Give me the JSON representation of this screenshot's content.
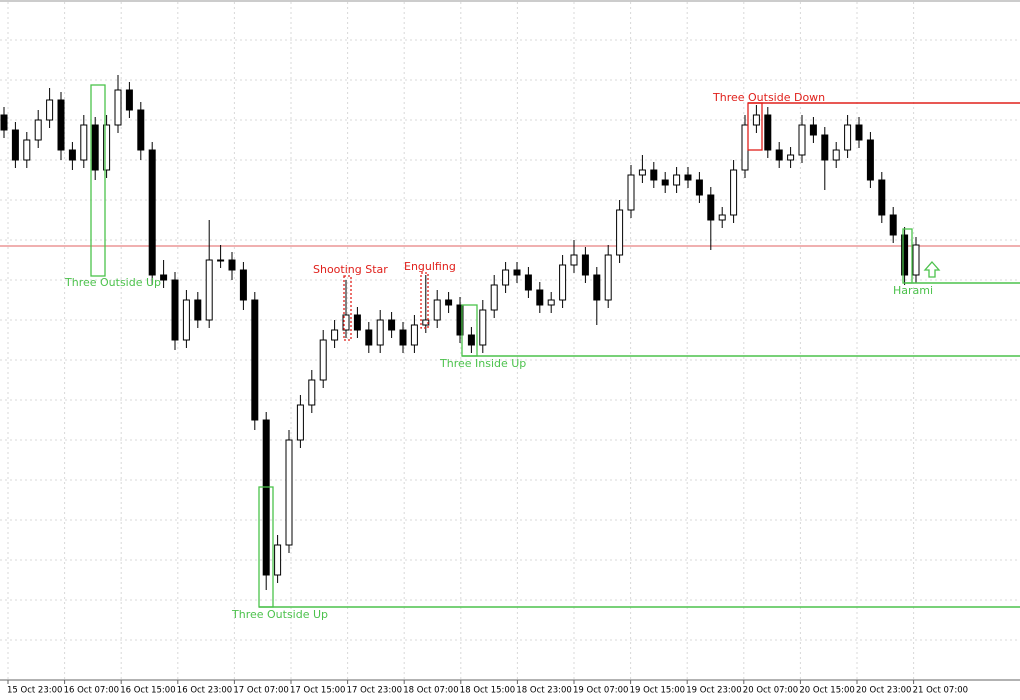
{
  "chart_data": {
    "type": "candlestick",
    "ylim": [
      20,
      700
    ],
    "time_labels": [
      "15 Oct 23:00",
      "16 Oct 07:00",
      "16 Oct 15:00",
      "16 Oct 23:00",
      "17 Oct 07:00",
      "17 Oct 15:00",
      "17 Oct 23:00",
      "18 Oct 07:00",
      "18 Oct 15:00",
      "18 Oct 23:00",
      "19 Oct 07:00",
      "19 Oct 15:00",
      "19 Oct 23:00",
      "20 Oct 07:00",
      "20 Oct 15:00",
      "20 Oct 23:00",
      "21 Oct 07:00"
    ],
    "candles": [
      [
        585,
        593,
        562,
        570
      ],
      [
        570,
        578,
        532,
        540
      ],
      [
        540,
        568,
        532,
        560
      ],
      [
        560,
        590,
        552,
        580
      ],
      [
        580,
        612,
        572,
        600
      ],
      [
        600,
        608,
        540,
        550
      ],
      [
        550,
        558,
        530,
        540
      ],
      [
        540,
        585,
        532,
        575
      ],
      [
        575,
        583,
        520,
        530
      ],
      [
        530,
        585,
        522,
        575
      ],
      [
        575,
        625,
        567,
        610
      ],
      [
        610,
        618,
        582,
        590
      ],
      [
        590,
        598,
        540,
        550
      ],
      [
        550,
        558,
        415,
        425
      ],
      [
        425,
        440,
        412,
        420
      ],
      [
        420,
        428,
        350,
        360
      ],
      [
        360,
        410,
        352,
        400
      ],
      [
        400,
        408,
        372,
        380
      ],
      [
        380,
        480,
        372,
        440
      ],
      [
        440,
        455,
        432,
        440
      ],
      [
        440,
        448,
        420,
        430
      ],
      [
        430,
        438,
        390,
        400
      ],
      [
        400,
        408,
        270,
        280
      ],
      [
        280,
        288,
        110,
        125
      ],
      [
        125,
        165,
        117,
        155
      ],
      [
        155,
        270,
        147,
        260
      ],
      [
        260,
        305,
        252,
        295
      ],
      [
        295,
        330,
        287,
        320
      ],
      [
        320,
        370,
        312,
        360
      ],
      [
        360,
        380,
        352,
        370
      ],
      [
        370,
        420,
        362,
        385
      ],
      [
        385,
        393,
        362,
        370
      ],
      [
        370,
        378,
        347,
        355
      ],
      [
        355,
        390,
        347,
        380
      ],
      [
        380,
        388,
        362,
        370
      ],
      [
        370,
        378,
        347,
        355
      ],
      [
        355,
        385,
        347,
        375
      ],
      [
        375,
        425,
        367,
        380
      ],
      [
        380,
        410,
        372,
        400
      ],
      [
        400,
        408,
        387,
        395
      ],
      [
        395,
        403,
        357,
        365
      ],
      [
        365,
        373,
        347,
        355
      ],
      [
        355,
        400,
        347,
        390
      ],
      [
        390,
        425,
        382,
        415
      ],
      [
        415,
        438,
        407,
        430
      ],
      [
        430,
        438,
        417,
        425
      ],
      [
        425,
        433,
        402,
        410
      ],
      [
        410,
        418,
        387,
        395
      ],
      [
        395,
        408,
        387,
        400
      ],
      [
        400,
        445,
        392,
        435
      ],
      [
        435,
        460,
        427,
        445
      ],
      [
        445,
        453,
        417,
        425
      ],
      [
        425,
        433,
        375,
        400
      ],
      [
        400,
        455,
        392,
        445
      ],
      [
        445,
        500,
        437,
        490
      ],
      [
        490,
        535,
        482,
        525
      ],
      [
        525,
        545,
        517,
        530
      ],
      [
        530,
        538,
        512,
        520
      ],
      [
        520,
        528,
        507,
        515
      ],
      [
        515,
        533,
        507,
        525
      ],
      [
        525,
        533,
        512,
        520
      ],
      [
        520,
        528,
        497,
        505
      ],
      [
        505,
        513,
        450,
        480
      ],
      [
        480,
        493,
        472,
        485
      ],
      [
        485,
        540,
        477,
        530
      ],
      [
        530,
        585,
        522,
        575
      ],
      [
        575,
        595,
        567,
        585
      ],
      [
        585,
        593,
        542,
        550
      ],
      [
        550,
        558,
        532,
        540
      ],
      [
        540,
        553,
        532,
        545
      ],
      [
        545,
        585,
        537,
        575
      ],
      [
        575,
        583,
        557,
        565
      ],
      [
        565,
        573,
        510,
        540
      ],
      [
        540,
        558,
        532,
        550
      ],
      [
        550,
        585,
        542,
        575
      ],
      [
        575,
        583,
        552,
        560
      ],
      [
        560,
        568,
        512,
        520
      ],
      [
        520,
        528,
        477,
        485
      ],
      [
        485,
        493,
        457,
        465
      ],
      [
        465,
        473,
        415,
        425
      ],
      [
        425,
        463,
        417,
        455
      ]
    ],
    "bull_color": "#ffffff",
    "bear_color": "#000000",
    "price_line": {
      "value": 454,
      "color": "#e06060"
    },
    "patterns": [
      {
        "label": "Three Outside Up",
        "color": "#4cc24c"
      },
      {
        "label": "Three Outside Up",
        "color": "#4cc24c",
        "level": 93
      },
      {
        "label": "Shooting Star",
        "color": "#e0201b"
      },
      {
        "label": "Engulfing",
        "color": "#e0201b"
      },
      {
        "label": "Three Inside Up",
        "color": "#4cc24c",
        "level": 344
      },
      {
        "label": "Three Outside Down",
        "color": "#e0201b",
        "level": 597
      },
      {
        "label": "Harami",
        "color": "#4cc24c",
        "level": 417
      }
    ]
  }
}
